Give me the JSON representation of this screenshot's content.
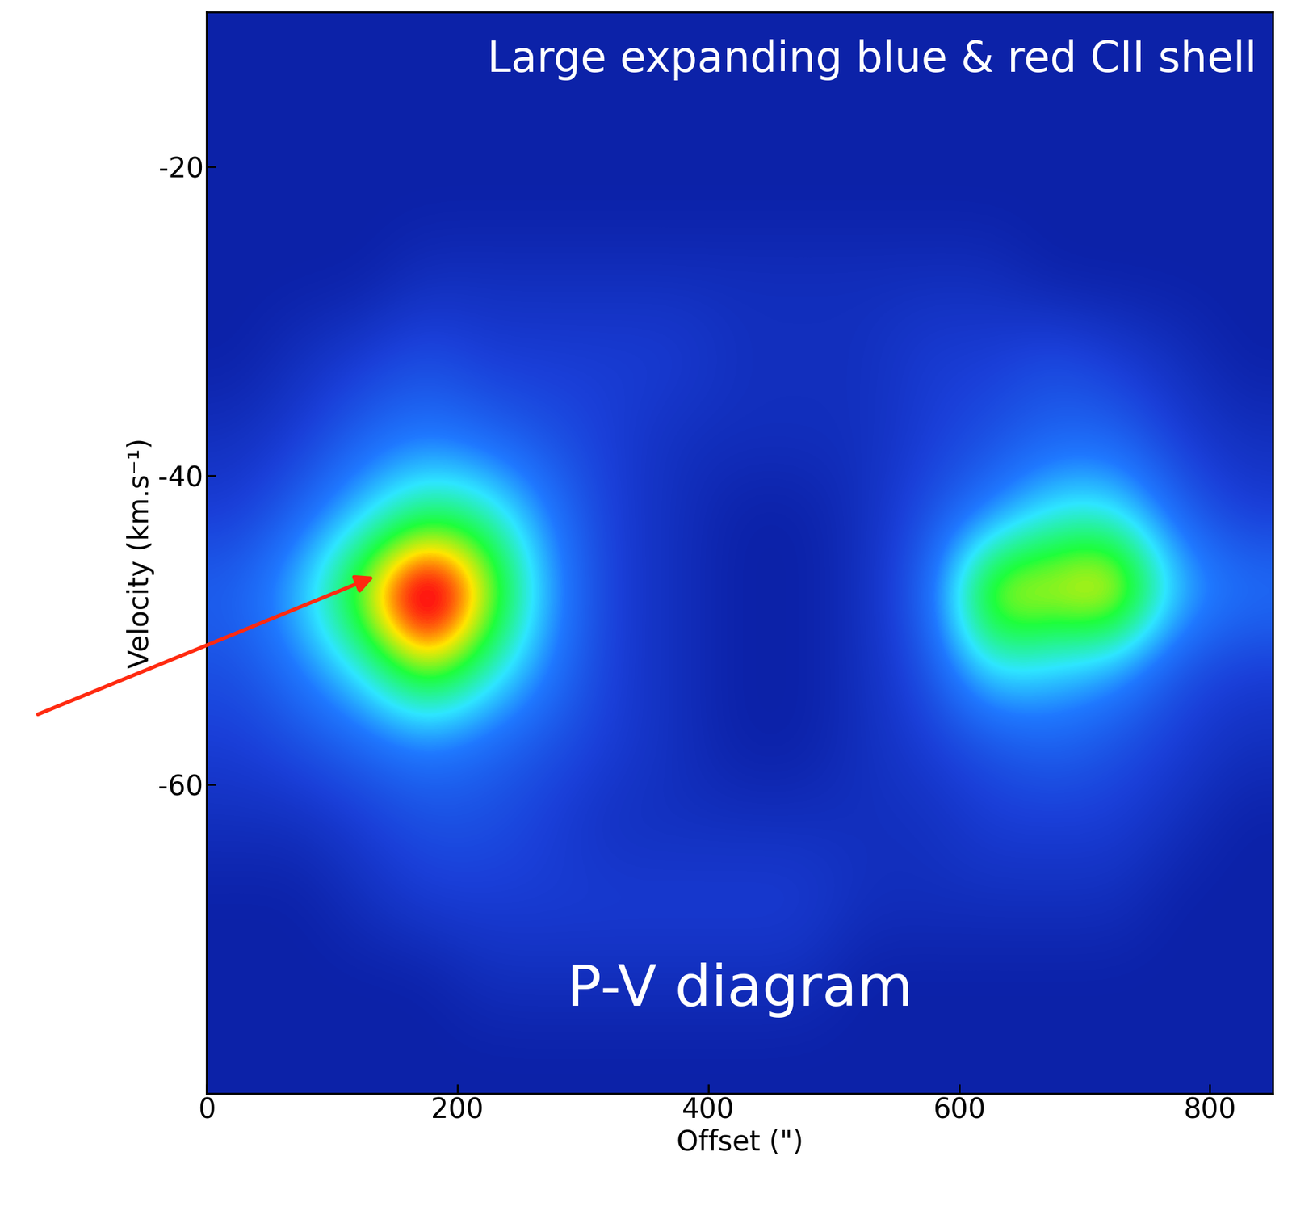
{
  "chart_data": {
    "type": "heatmap",
    "title": "Large expanding blue & red CII shell",
    "annotation": "P-V diagram",
    "x_label": "Offset (\")",
    "y_label": "Velocity (km.s⁻¹)",
    "x": [
      25,
      75,
      125,
      175,
      225,
      275,
      325,
      375,
      425,
      475,
      525,
      575,
      625,
      675,
      725,
      775,
      825
    ],
    "y": [
      -12.5,
      -17.5,
      -22.5,
      -27.5,
      -32.5,
      -37.5,
      -42.5,
      -47.5,
      -52.5,
      -57.5,
      -62.5,
      -67.5,
      -72.5,
      -77.5
    ],
    "cells": [
      [
        1,
        1,
        1,
        1,
        1,
        1,
        1,
        1,
        1,
        1,
        1,
        1,
        1,
        1,
        1,
        1,
        1
      ],
      [
        1,
        1,
        1,
        1,
        1,
        1,
        1,
        1,
        1,
        1,
        1,
        1,
        1,
        1,
        1,
        1,
        1
      ],
      [
        1,
        1,
        1,
        1,
        1,
        1,
        1,
        1,
        1,
        1,
        1,
        1,
        1,
        1,
        1,
        1,
        1
      ],
      [
        1,
        1,
        1,
        1.5,
        1.5,
        1.5,
        1.5,
        1.5,
        1.5,
        1.5,
        1.5,
        1.5,
        1.5,
        1,
        1,
        1,
        1
      ],
      [
        1,
        1.5,
        2,
        2.5,
        2,
        2,
        2,
        2,
        1.5,
        1.5,
        1.5,
        2,
        2,
        2.5,
        2,
        1.5,
        1
      ],
      [
        1.5,
        2,
        3,
        3.5,
        3,
        2.5,
        2,
        1.5,
        1.5,
        1.5,
        1.5,
        2,
        2.5,
        3,
        3,
        2,
        1.5
      ],
      [
        2,
        3,
        4.5,
        6,
        5.5,
        3.5,
        2,
        1.5,
        1,
        1,
        1.5,
        2.5,
        3.5,
        5,
        5,
        3,
        2
      ],
      [
        3,
        4.5,
        7.5,
        10,
        7.5,
        4,
        2,
        1.5,
        1,
        1,
        1.5,
        3,
        8,
        7.5,
        8.5,
        4.5,
        3.5
      ],
      [
        2.5,
        3.5,
        5,
        7.5,
        5.5,
        3.5,
        2,
        1.5,
        1,
        1,
        1.5,
        2.5,
        5,
        4.5,
        4,
        2.5,
        2
      ],
      [
        2,
        2.5,
        3,
        3.5,
        3,
        2.5,
        2,
        1.5,
        1,
        1,
        1.5,
        2,
        2.5,
        3,
        2.5,
        2,
        1.5
      ],
      [
        1.5,
        1.5,
        2,
        2.5,
        2.5,
        2,
        1.5,
        1.5,
        1.5,
        1.5,
        1.5,
        1.5,
        2,
        2,
        2,
        1.5,
        1
      ],
      [
        1,
        1,
        1.5,
        2,
        2,
        2,
        2,
        2,
        2,
        2,
        1.5,
        1.5,
        1.5,
        1.5,
        1.5,
        1,
        1
      ],
      [
        1,
        1,
        1,
        1,
        1.5,
        1.5,
        1.5,
        1.5,
        1.5,
        1.5,
        1,
        1,
        1,
        1,
        1,
        1,
        1
      ],
      [
        1,
        1,
        1,
        1,
        1,
        1,
        1,
        1,
        1,
        1,
        1,
        1,
        1,
        1,
        1,
        1,
        1
      ]
    ],
    "xlim": [
      0,
      850
    ],
    "ylim": [
      -80,
      -10
    ],
    "xticks": [
      0,
      200,
      400,
      600,
      800
    ],
    "yticks": [
      -60,
      -40,
      -20
    ]
  }
}
